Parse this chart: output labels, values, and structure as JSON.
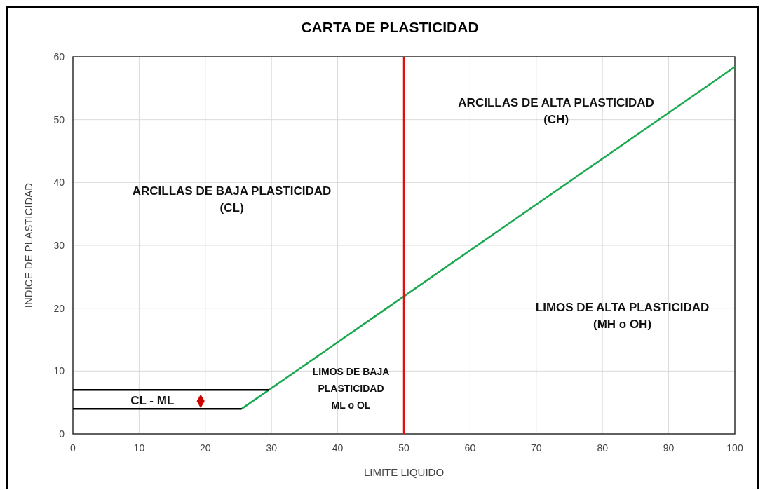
{
  "chart_data": {
    "type": "line",
    "title": "CARTA DE PLASTICIDAD",
    "xlabel": "LIMITE LIQUIDO",
    "ylabel": "INDICE DE PLASTICIDAD",
    "xlim": [
      0,
      100
    ],
    "xticks": [
      0,
      10,
      20,
      30,
      40,
      50,
      60,
      70,
      80,
      90,
      100
    ],
    "ylim": [
      0,
      60
    ],
    "yticks": [
      0,
      10,
      20,
      30,
      40,
      50,
      60
    ],
    "grid": true,
    "series": [
      {
        "color": "#1aa84f",
        "x": [
          25.5,
          100
        ],
        "values": [
          4,
          58.4
        ]
      },
      {
        "color": "#000000",
        "x": [
          0,
          29.6
        ],
        "values": [
          7,
          7
        ]
      },
      {
        "color": "#000000",
        "x": [
          0,
          25.5
        ],
        "values": [
          4,
          4
        ]
      },
      {
        "type": "scatter",
        "color": "#cc0000",
        "marker": "diamond",
        "x": [
          19.3
        ],
        "values": [
          5.2
        ]
      }
    ],
    "ref_lines": [
      {
        "axis": "x",
        "value": 50,
        "color": "#e01010"
      }
    ],
    "annotations": [
      "ARCILLAS DE ALTA PLASTICIDAD\n(CH)",
      "ARCILLAS DE BAJA PLASTICIDAD\n(CL)",
      "LIMOS DE ALTA PLASTICIDAD\n(MH o OH)",
      "LIMOS DE BAJA\nPLASTICIDAD\nML o OL",
      "CL - ML"
    ]
  }
}
